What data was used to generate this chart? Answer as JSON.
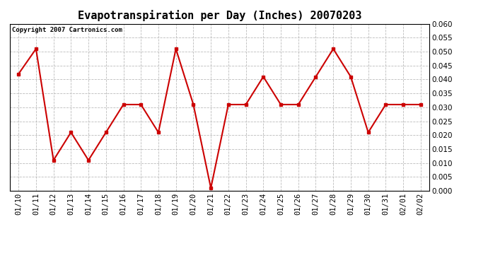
{
  "title": "Evapotranspiration per Day (Inches) 20070203",
  "copyright_text": "Copyright 2007 Cartronics.com",
  "dates": [
    "01/10",
    "01/11",
    "01/12",
    "01/13",
    "01/14",
    "01/15",
    "01/16",
    "01/17",
    "01/18",
    "01/19",
    "01/20",
    "01/21",
    "01/22",
    "01/23",
    "01/24",
    "01/25",
    "01/26",
    "01/27",
    "01/28",
    "01/29",
    "01/30",
    "01/31",
    "02/01",
    "02/02"
  ],
  "values": [
    0.042,
    0.051,
    0.011,
    0.021,
    0.011,
    0.021,
    0.031,
    0.031,
    0.021,
    0.051,
    0.031,
    0.001,
    0.031,
    0.031,
    0.041,
    0.031,
    0.031,
    0.041,
    0.051,
    0.041,
    0.021,
    0.031,
    0.031,
    0.031
  ],
  "line_color": "#cc0000",
  "marker": "s",
  "marker_size": 3,
  "ylim": [
    0.0,
    0.06
  ],
  "yticks": [
    0.0,
    0.005,
    0.01,
    0.015,
    0.02,
    0.025,
    0.03,
    0.035,
    0.04,
    0.045,
    0.05,
    0.055,
    0.06
  ],
  "background_color": "#ffffff",
  "plot_bg_color": "#ffffff",
  "grid_color": "#bbbbbb",
  "title_fontsize": 11,
  "copyright_fontsize": 6.5,
  "tick_fontsize": 7.5,
  "fig_width": 6.9,
  "fig_height": 3.75,
  "dpi": 100
}
